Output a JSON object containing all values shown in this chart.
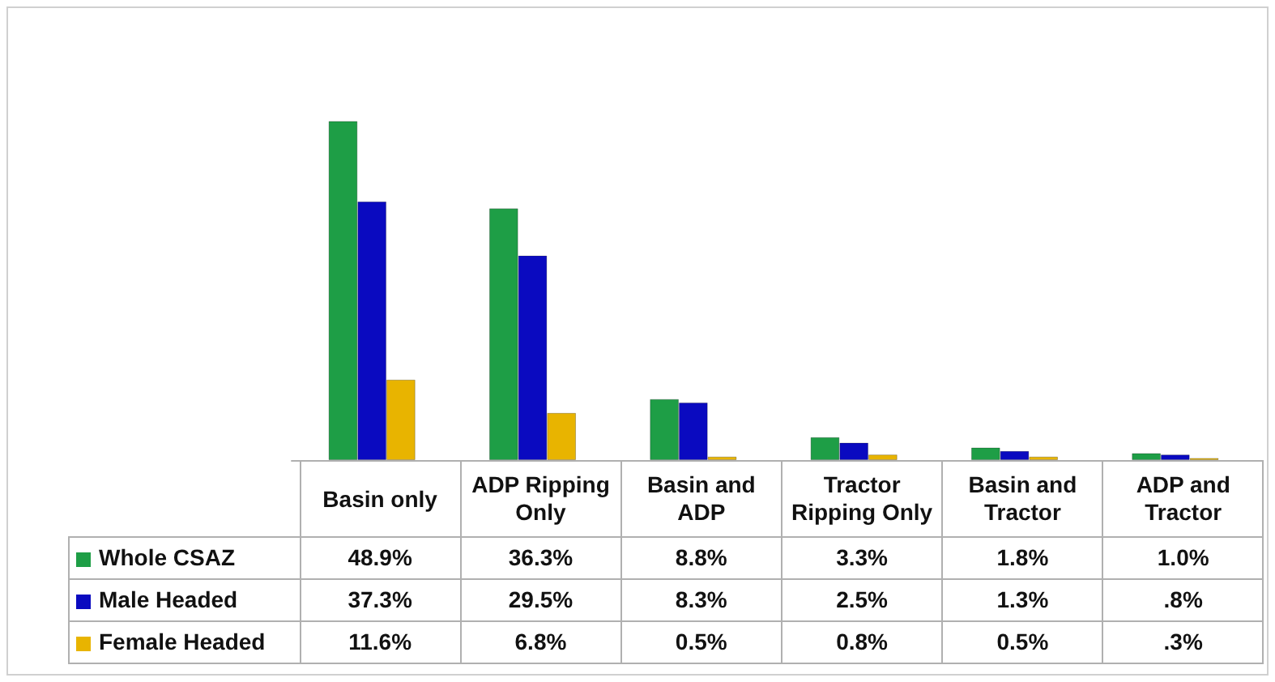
{
  "chart_data": {
    "type": "bar",
    "categories": [
      "Basin only",
      "ADP Ripping Only",
      "Basin and ADP",
      "Tractor Ripping Only",
      "Basin and Tractor",
      "ADP and Tractor"
    ],
    "series": [
      {
        "name": "Whole CSAZ",
        "color": "#1e9e46",
        "values": [
          48.9,
          36.3,
          8.8,
          3.3,
          1.8,
          1.0
        ],
        "value_labels": [
          "48.9%",
          "36.3%",
          "8.8%",
          "3.3%",
          "1.8%",
          "1.0%"
        ]
      },
      {
        "name": "Male Headed",
        "color": "#0a0ac0",
        "values": [
          37.3,
          29.5,
          8.3,
          2.5,
          1.3,
          0.8
        ],
        "value_labels": [
          "37.3%",
          "29.5%",
          "8.3%",
          "2.5%",
          "1.3%",
          ".8%"
        ]
      },
      {
        "name": "Female Headed",
        "color": "#e8b400",
        "values": [
          11.6,
          6.8,
          0.5,
          0.8,
          0.5,
          0.3
        ],
        "value_labels": [
          "11.6%",
          "6.8%",
          "0.5%",
          "0.8%",
          "0.5%",
          ".3%"
        ]
      }
    ],
    "legend": "bottom left"
  }
}
